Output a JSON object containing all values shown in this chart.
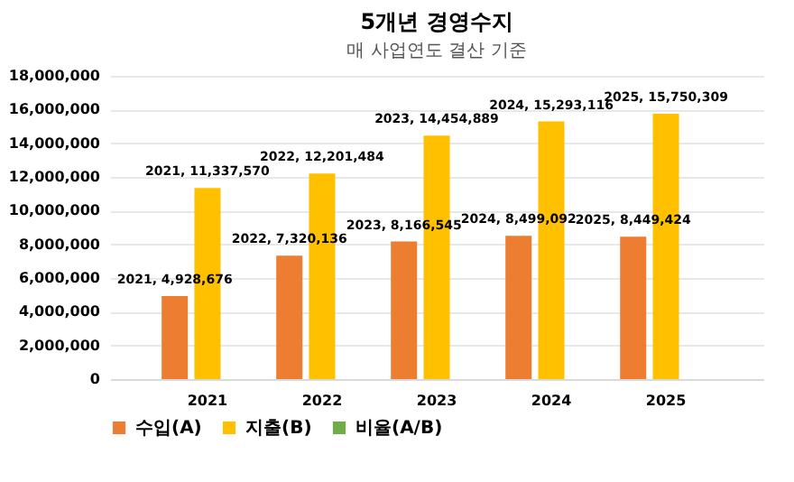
{
  "chart_data": {
    "type": "bar",
    "title": "5개년 경영수지",
    "subtitle": "매 사업연도 결산 기준",
    "categories": [
      "2021",
      "2022",
      "2023",
      "2024",
      "2025"
    ],
    "series": [
      {
        "name": "수입(A)",
        "color": "#ed7d31",
        "values": [
          4928676,
          7320136,
          8166545,
          8499092,
          8449424
        ],
        "value_labels": [
          "2021, 4,928,676",
          "2022, 7,320,136",
          "2023, 8,166,545",
          "2024, 8,499,092",
          "2025, 8,449,424"
        ]
      },
      {
        "name": "지출(B)",
        "color": "#ffc000",
        "values": [
          11337570,
          12201484,
          14454889,
          15293116,
          15750309
        ],
        "value_labels": [
          "2021, 11,337,570",
          "2022, 12,201,484",
          "2023, 14,454,889",
          "2024, 15,293,116",
          "2025, 15,750,309"
        ]
      },
      {
        "name": "비율(A/B)",
        "color": "#70ad47",
        "values": [
          null,
          null,
          null,
          null,
          null
        ]
      }
    ],
    "ylim": [
      0,
      18000000
    ],
    "yticks": [
      0,
      {
        "value": 2000000,
        "label": "2,000,000"
      },
      {
        "value": 4000000,
        "label": "4,000,000"
      },
      {
        "value": 6000000,
        "label": "6,000,000"
      },
      {
        "value": 8000000,
        "label": "8,000,000"
      },
      {
        "value": 10000000,
        "label": "10,000,000"
      },
      {
        "value": 12000000,
        "label": "12,000,000"
      },
      {
        "value": 14000000,
        "label": "14,000,000"
      },
      {
        "value": 16000000,
        "label": "16,000,000"
      },
      {
        "value": 18000000,
        "label": "18,000,000"
      }
    ],
    "grid": "y",
    "legend": "bottom"
  }
}
